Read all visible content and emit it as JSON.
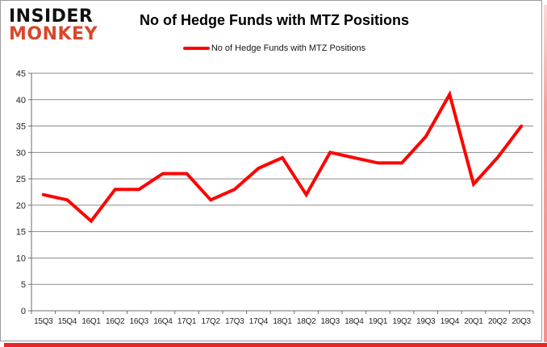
{
  "brand": {
    "line1": "INSIDER",
    "line2": "MONKEY",
    "color1": "#101010",
    "color2": "#d9472b"
  },
  "title": "No of Hedge Funds with MTZ Positions",
  "legend": {
    "label": "No of Hedge Funds with MTZ Positions",
    "swatch_color": "#ff0000"
  },
  "colors": {
    "line": "#ff0000",
    "grid": "#8a8a8a",
    "axis": "#6e6e6e",
    "label_text": "#1f1f1f"
  },
  "chart_data": {
    "type": "line",
    "title": "No of Hedge Funds with MTZ Positions",
    "categories": [
      "15Q3",
      "15Q4",
      "16Q1",
      "16Q2",
      "16Q3",
      "16Q4",
      "17Q1",
      "17Q2",
      "17Q3",
      "17Q4",
      "18Q1",
      "18Q2",
      "18Q3",
      "18Q4",
      "19Q1",
      "19Q2",
      "19Q3",
      "19Q4",
      "20Q1",
      "20Q2",
      "20Q3"
    ],
    "series": [
      {
        "name": "No of Hedge Funds with MTZ Positions",
        "color": "#ff0000",
        "values": [
          22,
          21,
          17,
          23,
          23,
          26,
          26,
          21,
          23,
          27,
          29,
          22,
          30,
          29,
          28,
          28,
          33,
          41,
          24,
          29,
          35
        ]
      }
    ],
    "xlabel": "",
    "ylabel": "",
    "ylim": [
      0,
      45
    ],
    "yticks": [
      0,
      5,
      10,
      15,
      20,
      25,
      30,
      35,
      40,
      45
    ],
    "grid": "horizontal",
    "legend_position": "top"
  }
}
